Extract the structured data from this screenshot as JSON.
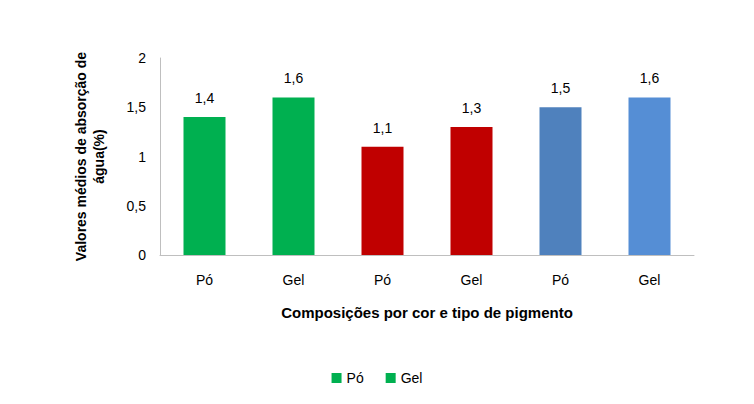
{
  "chart_data": {
    "type": "bar",
    "y_label": "Valores médios de absorção de\nágua(%)",
    "x_label": "Composições por cor e tipo de pigmento",
    "categories": [
      "Pó",
      "Gel",
      "Pó",
      "Gel",
      "Pó",
      "Gel"
    ],
    "series": [
      {
        "name": "Pó",
        "color": "#00b050",
        "values": [
          1.4,
          null,
          null,
          null,
          null,
          null
        ],
        "value_labels": [
          "1,4",
          null,
          null,
          null,
          null,
          null
        ]
      },
      {
        "name": "Gel",
        "color": "#00b050",
        "values": [
          null,
          1.6,
          null,
          null,
          null,
          null
        ],
        "value_labels": [
          null,
          "1,6",
          null,
          null,
          null,
          null
        ]
      },
      {
        "name": "Pó",
        "color": "#c00000",
        "values": [
          null,
          null,
          1.1,
          null,
          null,
          null
        ],
        "value_labels": [
          null,
          null,
          "1,1",
          null,
          null,
          null
        ]
      },
      {
        "name": "Gel",
        "color": "#c00000",
        "values": [
          null,
          null,
          null,
          1.3,
          null,
          null
        ],
        "value_labels": [
          null,
          null,
          null,
          "1,3",
          null,
          null
        ]
      },
      {
        "name": "Pó",
        "color": "#4f81bd",
        "values": [
          null,
          null,
          null,
          null,
          1.5,
          null
        ],
        "value_labels": [
          null,
          null,
          null,
          null,
          "1,5",
          null
        ]
      },
      {
        "name": "Gel",
        "color": "#558ed5",
        "values": [
          null,
          null,
          null,
          null,
          null,
          1.6
        ],
        "value_labels": [
          null,
          null,
          null,
          null,
          null,
          "1,6"
        ]
      }
    ],
    "ylim": [
      0,
      2
    ],
    "yticks": [
      0,
      {
        "value": 0.5,
        "label": "0,5"
      },
      1,
      {
        "value": 1.5,
        "label": "1,5"
      },
      2
    ],
    "grid": false,
    "legend": "bottom",
    "data_labels": true
  }
}
